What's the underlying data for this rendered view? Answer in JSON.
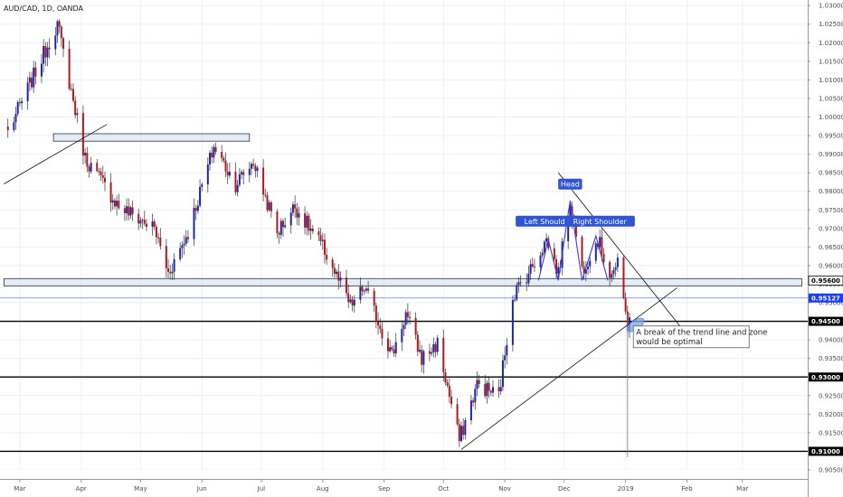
{
  "chart_title": "AUD/CAD, 1D, OANDA",
  "chart_data": {
    "type": "candlestick",
    "symbol": "AUD/CAD",
    "interval": "1D",
    "source": "OANDA",
    "ylim": [
      0.905,
      1.0315
    ],
    "grid": true,
    "y_ticks": [
      "1.03000",
      "1.02500",
      "1.02000",
      "1.01500",
      "1.01000",
      "1.00500",
      "1.00000",
      "0.99500",
      "0.99000",
      "0.98500",
      "0.98000",
      "0.97500",
      "0.97000",
      "0.96500",
      "0.96000",
      "0.95500",
      "0.95000",
      "0.94500",
      "0.94000",
      "0.93500",
      "0.93000",
      "0.92500",
      "0.92000",
      "0.91500",
      "0.91000",
      "0.90500"
    ],
    "x_ticks": [
      "Mar",
      "Apr",
      "May",
      "Jun",
      "Jul",
      "Aug",
      "Sep",
      "Oct",
      "Nov",
      "Dec",
      "2019",
      "Feb",
      "Mar"
    ],
    "last_price": 0.95127,
    "price_tags": [
      {
        "label": "0.95600",
        "value": 0.956,
        "kind": "box"
      },
      {
        "label": "0.95127",
        "value": 0.95127,
        "kind": "last"
      },
      {
        "label": "0.94500",
        "value": 0.945,
        "kind": "level"
      },
      {
        "label": "0.93000",
        "value": 0.93,
        "kind": "level"
      },
      {
        "label": "0.91000",
        "value": 0.91,
        "kind": "level"
      }
    ],
    "key_points": [
      {
        "date": "2018-02-23",
        "value": 0.996
      },
      {
        "date": "2018-03-20",
        "value": 1.025
      },
      {
        "date": "2018-04-03",
        "value": 0.989
      },
      {
        "date": "2018-04-20",
        "value": 0.976
      },
      {
        "date": "2018-05-08",
        "value": 0.97
      },
      {
        "date": "2018-05-15",
        "value": 0.958
      },
      {
        "date": "2018-05-25",
        "value": 0.969
      },
      {
        "date": "2018-06-07",
        "value": 0.992
      },
      {
        "date": "2018-06-18",
        "value": 0.982
      },
      {
        "date": "2018-06-27",
        "value": 0.988
      },
      {
        "date": "2018-07-09",
        "value": 0.969
      },
      {
        "date": "2018-07-18",
        "value": 0.976
      },
      {
        "date": "2018-08-02",
        "value": 0.964
      },
      {
        "date": "2018-08-15",
        "value": 0.949
      },
      {
        "date": "2018-08-22",
        "value": 0.954
      },
      {
        "date": "2018-09-05",
        "value": 0.936
      },
      {
        "date": "2018-09-12",
        "value": 0.947
      },
      {
        "date": "2018-09-20",
        "value": 0.935
      },
      {
        "date": "2018-09-28",
        "value": 0.939
      },
      {
        "date": "2018-10-09",
        "value": 0.913
      },
      {
        "date": "2018-10-18",
        "value": 0.928
      },
      {
        "date": "2018-10-29",
        "value": 0.925
      },
      {
        "date": "2018-11-05",
        "value": 0.952
      },
      {
        "date": "2018-11-14",
        "value": 0.959
      },
      {
        "date": "2018-11-22",
        "value": 0.967
      },
      {
        "date": "2018-11-28",
        "value": 0.958
      },
      {
        "date": "2018-12-04",
        "value": 0.977
      },
      {
        "date": "2018-12-10",
        "value": 0.959
      },
      {
        "date": "2018-12-18",
        "value": 0.967
      },
      {
        "date": "2018-12-24",
        "value": 0.958
      },
      {
        "date": "2018-12-28",
        "value": 0.96
      },
      {
        "date": "2019-01-02",
        "value": 0.944
      },
      {
        "date": "2019-01-03",
        "value": 0.947
      }
    ],
    "levels": [
      {
        "name": "0.94500",
        "value": 0.945
      },
      {
        "name": "0.93000",
        "value": 0.93
      },
      {
        "name": "0.91000",
        "value": 0.91
      }
    ],
    "zones": [
      {
        "from_date": "2018-03-18",
        "to_date": "2018-06-25",
        "low": 0.9935,
        "high": 0.9955
      },
      {
        "from_date": "2018-02-21",
        "to_date": "2019-03-31",
        "low": 0.9545,
        "high": 0.9565
      }
    ],
    "trend_lines": [
      {
        "from": {
          "date": "2018-02-21",
          "value": 0.982
        },
        "to": {
          "date": "2018-04-14",
          "value": 0.998
        }
      },
      {
        "from": {
          "date": "2018-10-10",
          "value": 0.9105
        },
        "to": {
          "date": "2019-01-27",
          "value": 0.954
        }
      },
      {
        "from": {
          "date": "2018-11-28",
          "value": 0.985
        },
        "to": {
          "date": "2019-01-31",
          "value": 0.942
        }
      }
    ],
    "annotations": [
      {
        "label": "Head",
        "date": "2018-12-04",
        "value": 0.98
      },
      {
        "label": "Left Shoulder",
        "date": "2018-11-23",
        "value": 0.97
      },
      {
        "label": "Right Shoulder",
        "date": "2018-12-19",
        "value": 0.97
      },
      {
        "label": "A break of the trend line and zone would be optimal",
        "date": "2019-01-04",
        "value": 0.943
      }
    ]
  }
}
